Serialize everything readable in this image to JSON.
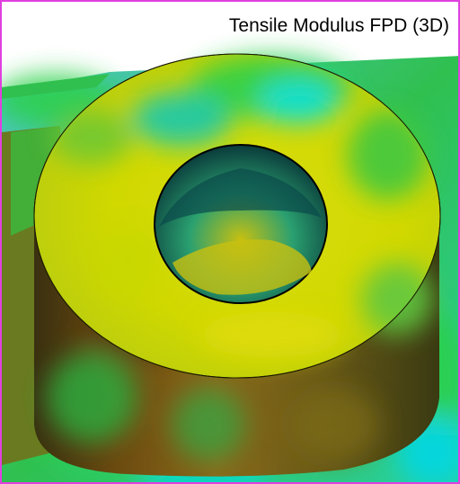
{
  "viewer": {
    "title": "Tensile Modulus FPD (3D)",
    "frame_color": "#e040e0"
  },
  "colormap": {
    "high": "#e3de00",
    "mid_high": "#8ed82a",
    "mid": "#2ad04a",
    "mid_low": "#12d2b0",
    "low": "#00e8e8",
    "shadow": "#6b3a10"
  }
}
